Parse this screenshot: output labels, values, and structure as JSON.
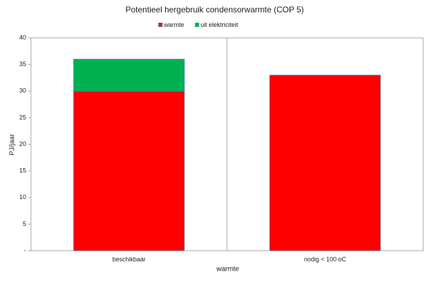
{
  "chart_data": {
    "type": "stacked_bar",
    "title": "Potentieel hergebruik condensorwarmte (COP 5)",
    "xlabel": "warmte",
    "ylabel": "PJ/jaar",
    "categories": [
      "beschikbaar",
      "nodig < 100 oC"
    ],
    "series": [
      {
        "name": "warmte",
        "color": "#ff0000",
        "legend_color": "#993366",
        "values": [
          30,
          33
        ]
      },
      {
        "name": "uit elektriciteit",
        "color": "#00b050",
        "values": [
          6,
          null
        ]
      }
    ],
    "ylim": [
      0,
      40
    ],
    "yticks": [
      {
        "value": 0,
        "label": "-"
      },
      5,
      10,
      15,
      20,
      25,
      30,
      35,
      40
    ],
    "legend": "top",
    "grid": false
  }
}
